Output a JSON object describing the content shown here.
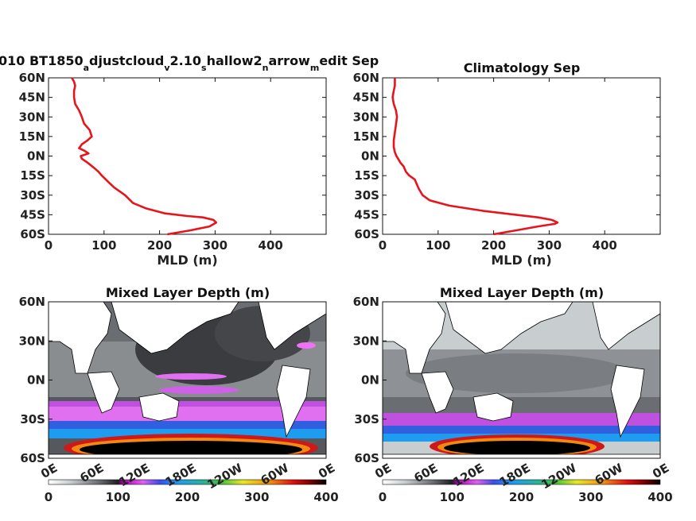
{
  "figure": {
    "title_left": "010 BT1850",
    "title_left_parts": [
      {
        "t": "010 BT1850",
        "sub": false
      },
      {
        "t": "a",
        "sub": true
      },
      {
        "t": "djustcloud",
        "sub": false
      },
      {
        "t": "v",
        "sub": true
      },
      {
        "t": "2.10",
        "sub": false
      },
      {
        "t": "s",
        "sub": true
      },
      {
        "t": "hallow2",
        "sub": false
      },
      {
        "t": "n",
        "sub": true
      },
      {
        "t": "arrow",
        "sub": false
      },
      {
        "t": "m",
        "sub": true
      },
      {
        "t": "edit Sep",
        "sub": false
      }
    ],
    "title_right": "Climatology Sep",
    "map_title_left": "Mixed Layer Depth (m)",
    "map_title_right": "Mixed Layer Depth (m)"
  },
  "chart_data": [
    {
      "type": "line",
      "title": "010 BT1850adjustcloudv2.10shallow2narrowmedit Sep",
      "xlabel": "MLD (m)",
      "ylabel": "",
      "xlim": [
        0,
        500
      ],
      "ylim": [
        -60,
        60
      ],
      "xticks": [
        "0",
        "100",
        "200",
        "300",
        "400"
      ],
      "yticks": [
        "60S",
        "45S",
        "30S",
        "15S",
        "0N",
        "15N",
        "30N",
        "45N",
        "60N"
      ],
      "color": "#e8141c",
      "series": [
        {
          "x": [
            214,
            255,
            290,
            302,
            297,
            278,
            250,
            210,
            175,
            152,
            138,
            118,
            108,
            96,
            90,
            82,
            70,
            60,
            58,
            72,
            65,
            55,
            60,
            70,
            78,
            74,
            64,
            60,
            55,
            48,
            46,
            46,
            48,
            46,
            42
          ],
          "y": [
            -60,
            -57,
            -54,
            -51,
            -49,
            -47,
            -46,
            -44,
            -40,
            -36,
            -30,
            -24,
            -20,
            -15,
            -12,
            -9,
            -5,
            -2,
            0,
            2,
            4,
            6,
            9,
            12,
            15,
            20,
            25,
            30,
            35,
            40,
            45,
            50,
            54,
            57,
            60
          ]
        }
      ]
    },
    {
      "type": "line",
      "title": "Climatology Sep",
      "xlabel": "MLD (m)",
      "ylabel": "",
      "xlim": [
        0,
        500
      ],
      "ylim": [
        -60,
        60
      ],
      "xticks": [
        "0",
        "100",
        "200",
        "300",
        "400"
      ],
      "yticks": [
        "60S",
        "45S",
        "30S",
        "15S",
        "0N",
        "15N",
        "30N",
        "45N",
        "60N"
      ],
      "color": "#e8141c",
      "series": [
        {
          "x": [
            200,
            240,
            280,
            310,
            315,
            305,
            280,
            240,
            180,
            120,
            85,
            72,
            65,
            62,
            58,
            48,
            42,
            38,
            32,
            28,
            25,
            22,
            20,
            20,
            22,
            24,
            26,
            24,
            20,
            18,
            20,
            22,
            22,
            22
          ],
          "y": [
            -60,
            -57,
            -54,
            -52,
            -51,
            -49,
            -47,
            -45,
            -42,
            -38,
            -34,
            -30,
            -25,
            -22,
            -18,
            -15,
            -12,
            -8,
            -5,
            -2,
            0,
            3,
            7,
            12,
            18,
            24,
            30,
            35,
            40,
            45,
            50,
            54,
            57,
            60
          ]
        }
      ]
    },
    {
      "type": "heatmap",
      "title": "Mixed Layer Depth (m)",
      "yticks": [
        "60N",
        "30N",
        "0N",
        "30S",
        "60S"
      ],
      "xticks": [
        "0E",
        "60E",
        "120E",
        "180E",
        "120W",
        "60W",
        "0E"
      ],
      "colorbar": {
        "ticks": [
          "0",
          "100",
          "200",
          "300",
          "400"
        ],
        "range": [
          0,
          400
        ]
      }
    },
    {
      "type": "heatmap",
      "title": "Mixed Layer Depth (m)",
      "yticks": [
        "60N",
        "30N",
        "0N",
        "30S",
        "60S"
      ],
      "xticks": [
        "0E",
        "60E",
        "120E",
        "180E",
        "120W",
        "60W",
        "0E"
      ],
      "colorbar": {
        "ticks": [
          "0",
          "100",
          "200",
          "300",
          "400"
        ],
        "range": [
          0,
          400
        ]
      }
    }
  ]
}
